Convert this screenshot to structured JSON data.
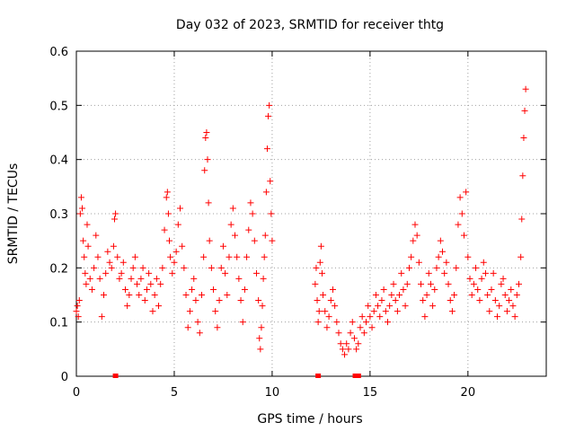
{
  "chart_data": {
    "type": "scatter",
    "title": "Day 032 of 2023, SRMTID for receiver thtg",
    "xlabel": "GPS time / hours",
    "ylabel": "SRMTID / TECUs",
    "xlim": [
      0,
      24
    ],
    "ylim": [
      0,
      0.6
    ],
    "x_ticks": [
      0,
      5,
      10,
      15,
      20
    ],
    "x_tick_labels": [
      "0",
      "5",
      "10",
      "15",
      "20"
    ],
    "y_ticks": [
      0,
      0.1,
      0.2,
      0.3,
      0.4,
      0.5,
      0.6
    ],
    "y_tick_labels": [
      "0",
      "0.1",
      "0.2",
      "0.3",
      "0.4",
      "0.5",
      "0.6"
    ],
    "grid": true,
    "marker": "plus",
    "color": "#ff0000",
    "gap_markers_x": [
      2.0,
      12.35,
      14.25,
      14.4
    ],
    "series": [
      {
        "name": "SRMTID",
        "points": [
          [
            0.0,
            0.12
          ],
          [
            0.05,
            0.13
          ],
          [
            0.1,
            0.11
          ],
          [
            0.15,
            0.14
          ],
          [
            0.2,
            0.3
          ],
          [
            0.25,
            0.33
          ],
          [
            0.3,
            0.31
          ],
          [
            0.35,
            0.25
          ],
          [
            0.4,
            0.22
          ],
          [
            0.45,
            0.19
          ],
          [
            0.5,
            0.17
          ],
          [
            0.55,
            0.28
          ],
          [
            0.6,
            0.24
          ],
          [
            0.7,
            0.18
          ],
          [
            0.8,
            0.16
          ],
          [
            0.9,
            0.2
          ],
          [
            1.0,
            0.26
          ],
          [
            1.1,
            0.22
          ],
          [
            1.2,
            0.18
          ],
          [
            1.3,
            0.11
          ],
          [
            1.4,
            0.15
          ],
          [
            1.5,
            0.19
          ],
          [
            1.6,
            0.23
          ],
          [
            1.7,
            0.21
          ],
          [
            1.8,
            0.2
          ],
          [
            1.9,
            0.24
          ],
          [
            1.95,
            0.29
          ],
          [
            2.0,
            0.3
          ],
          [
            2.1,
            0.22
          ],
          [
            2.2,
            0.18
          ],
          [
            2.3,
            0.19
          ],
          [
            2.4,
            0.21
          ],
          [
            2.5,
            0.16
          ],
          [
            2.6,
            0.13
          ],
          [
            2.7,
            0.15
          ],
          [
            2.8,
            0.18
          ],
          [
            2.9,
            0.2
          ],
          [
            3.0,
            0.22
          ],
          [
            3.1,
            0.17
          ],
          [
            3.2,
            0.15
          ],
          [
            3.3,
            0.18
          ],
          [
            3.4,
            0.2
          ],
          [
            3.5,
            0.14
          ],
          [
            3.6,
            0.16
          ],
          [
            3.7,
            0.19
          ],
          [
            3.8,
            0.17
          ],
          [
            3.9,
            0.12
          ],
          [
            4.0,
            0.15
          ],
          [
            4.1,
            0.18
          ],
          [
            4.2,
            0.13
          ],
          [
            4.3,
            0.17
          ],
          [
            4.4,
            0.2
          ],
          [
            4.5,
            0.27
          ],
          [
            4.6,
            0.33
          ],
          [
            4.65,
            0.34
          ],
          [
            4.7,
            0.3
          ],
          [
            4.75,
            0.25
          ],
          [
            4.8,
            0.22
          ],
          [
            4.9,
            0.19
          ],
          [
            5.0,
            0.21
          ],
          [
            5.1,
            0.23
          ],
          [
            5.2,
            0.28
          ],
          [
            5.3,
            0.31
          ],
          [
            5.4,
            0.24
          ],
          [
            5.5,
            0.2
          ],
          [
            5.6,
            0.15
          ],
          [
            5.7,
            0.09
          ],
          [
            5.8,
            0.12
          ],
          [
            5.9,
            0.16
          ],
          [
            6.0,
            0.18
          ],
          [
            6.1,
            0.14
          ],
          [
            6.2,
            0.1
          ],
          [
            6.3,
            0.08
          ],
          [
            6.4,
            0.15
          ],
          [
            6.5,
            0.22
          ],
          [
            6.55,
            0.38
          ],
          [
            6.6,
            0.44
          ],
          [
            6.65,
            0.45
          ],
          [
            6.7,
            0.4
          ],
          [
            6.75,
            0.32
          ],
          [
            6.8,
            0.25
          ],
          [
            6.9,
            0.2
          ],
          [
            7.0,
            0.16
          ],
          [
            7.1,
            0.12
          ],
          [
            7.2,
            0.09
          ],
          [
            7.3,
            0.14
          ],
          [
            7.4,
            0.2
          ],
          [
            7.5,
            0.24
          ],
          [
            7.6,
            0.19
          ],
          [
            7.7,
            0.15
          ],
          [
            7.8,
            0.22
          ],
          [
            7.9,
            0.28
          ],
          [
            8.0,
            0.31
          ],
          [
            8.1,
            0.26
          ],
          [
            8.2,
            0.22
          ],
          [
            8.3,
            0.18
          ],
          [
            8.4,
            0.14
          ],
          [
            8.5,
            0.1
          ],
          [
            8.6,
            0.16
          ],
          [
            8.7,
            0.22
          ],
          [
            8.8,
            0.27
          ],
          [
            8.9,
            0.32
          ],
          [
            9.0,
            0.3
          ],
          [
            9.1,
            0.25
          ],
          [
            9.2,
            0.19
          ],
          [
            9.3,
            0.14
          ],
          [
            9.35,
            0.07
          ],
          [
            9.4,
            0.05
          ],
          [
            9.45,
            0.09
          ],
          [
            9.5,
            0.13
          ],
          [
            9.55,
            0.18
          ],
          [
            9.6,
            0.22
          ],
          [
            9.65,
            0.26
          ],
          [
            9.7,
            0.34
          ],
          [
            9.75,
            0.42
          ],
          [
            9.8,
            0.48
          ],
          [
            9.85,
            0.5
          ],
          [
            9.9,
            0.36
          ],
          [
            9.95,
            0.3
          ],
          [
            10.0,
            0.25
          ],
          [
            12.2,
            0.17
          ],
          [
            12.25,
            0.2
          ],
          [
            12.3,
            0.14
          ],
          [
            12.35,
            0.1
          ],
          [
            12.4,
            0.12
          ],
          [
            12.45,
            0.21
          ],
          [
            12.5,
            0.24
          ],
          [
            12.55,
            0.19
          ],
          [
            12.6,
            0.15
          ],
          [
            12.7,
            0.12
          ],
          [
            12.8,
            0.09
          ],
          [
            12.9,
            0.11
          ],
          [
            13.0,
            0.14
          ],
          [
            13.1,
            0.16
          ],
          [
            13.2,
            0.13
          ],
          [
            13.3,
            0.1
          ],
          [
            13.4,
            0.08
          ],
          [
            13.5,
            0.06
          ],
          [
            13.6,
            0.05
          ],
          [
            13.7,
            0.04
          ],
          [
            13.8,
            0.06
          ],
          [
            13.9,
            0.05
          ],
          [
            14.0,
            0.08
          ],
          [
            14.1,
            0.1
          ],
          [
            14.2,
            0.07
          ],
          [
            14.3,
            0.05
          ],
          [
            14.4,
            0.06
          ],
          [
            14.5,
            0.09
          ],
          [
            14.6,
            0.11
          ],
          [
            14.7,
            0.08
          ],
          [
            14.8,
            0.1
          ],
          [
            14.9,
            0.13
          ],
          [
            15.0,
            0.11
          ],
          [
            15.1,
            0.09
          ],
          [
            15.2,
            0.12
          ],
          [
            15.3,
            0.15
          ],
          [
            15.4,
            0.13
          ],
          [
            15.5,
            0.11
          ],
          [
            15.6,
            0.14
          ],
          [
            15.7,
            0.16
          ],
          [
            15.8,
            0.12
          ],
          [
            15.9,
            0.1
          ],
          [
            16.0,
            0.13
          ],
          [
            16.1,
            0.15
          ],
          [
            16.2,
            0.17
          ],
          [
            16.3,
            0.14
          ],
          [
            16.4,
            0.12
          ],
          [
            16.5,
            0.15
          ],
          [
            16.6,
            0.19
          ],
          [
            16.7,
            0.16
          ],
          [
            16.8,
            0.13
          ],
          [
            16.9,
            0.17
          ],
          [
            17.0,
            0.2
          ],
          [
            17.1,
            0.22
          ],
          [
            17.2,
            0.25
          ],
          [
            17.3,
            0.28
          ],
          [
            17.4,
            0.26
          ],
          [
            17.5,
            0.21
          ],
          [
            17.6,
            0.17
          ],
          [
            17.7,
            0.14
          ],
          [
            17.8,
            0.11
          ],
          [
            17.9,
            0.15
          ],
          [
            18.0,
            0.19
          ],
          [
            18.1,
            0.17
          ],
          [
            18.2,
            0.13
          ],
          [
            18.3,
            0.16
          ],
          [
            18.4,
            0.2
          ],
          [
            18.5,
            0.22
          ],
          [
            18.6,
            0.25
          ],
          [
            18.7,
            0.23
          ],
          [
            18.8,
            0.19
          ],
          [
            18.9,
            0.21
          ],
          [
            19.0,
            0.17
          ],
          [
            19.1,
            0.14
          ],
          [
            19.2,
            0.12
          ],
          [
            19.3,
            0.15
          ],
          [
            19.4,
            0.2
          ],
          [
            19.5,
            0.28
          ],
          [
            19.6,
            0.33
          ],
          [
            19.7,
            0.3
          ],
          [
            19.8,
            0.26
          ],
          [
            19.9,
            0.34
          ],
          [
            20.0,
            0.22
          ],
          [
            20.1,
            0.18
          ],
          [
            20.2,
            0.15
          ],
          [
            20.3,
            0.17
          ],
          [
            20.4,
            0.2
          ],
          [
            20.5,
            0.16
          ],
          [
            20.6,
            0.14
          ],
          [
            20.7,
            0.18
          ],
          [
            20.8,
            0.21
          ],
          [
            20.9,
            0.19
          ],
          [
            21.0,
            0.15
          ],
          [
            21.1,
            0.12
          ],
          [
            21.2,
            0.16
          ],
          [
            21.3,
            0.19
          ],
          [
            21.4,
            0.14
          ],
          [
            21.5,
            0.11
          ],
          [
            21.6,
            0.13
          ],
          [
            21.7,
            0.17
          ],
          [
            21.8,
            0.18
          ],
          [
            21.9,
            0.15
          ],
          [
            22.0,
            0.12
          ],
          [
            22.1,
            0.14
          ],
          [
            22.2,
            0.16
          ],
          [
            22.3,
            0.13
          ],
          [
            22.4,
            0.11
          ],
          [
            22.5,
            0.15
          ],
          [
            22.6,
            0.17
          ],
          [
            22.7,
            0.22
          ],
          [
            22.75,
            0.29
          ],
          [
            22.8,
            0.37
          ],
          [
            22.85,
            0.44
          ],
          [
            22.9,
            0.49
          ],
          [
            22.95,
            0.53
          ]
        ]
      }
    ]
  }
}
